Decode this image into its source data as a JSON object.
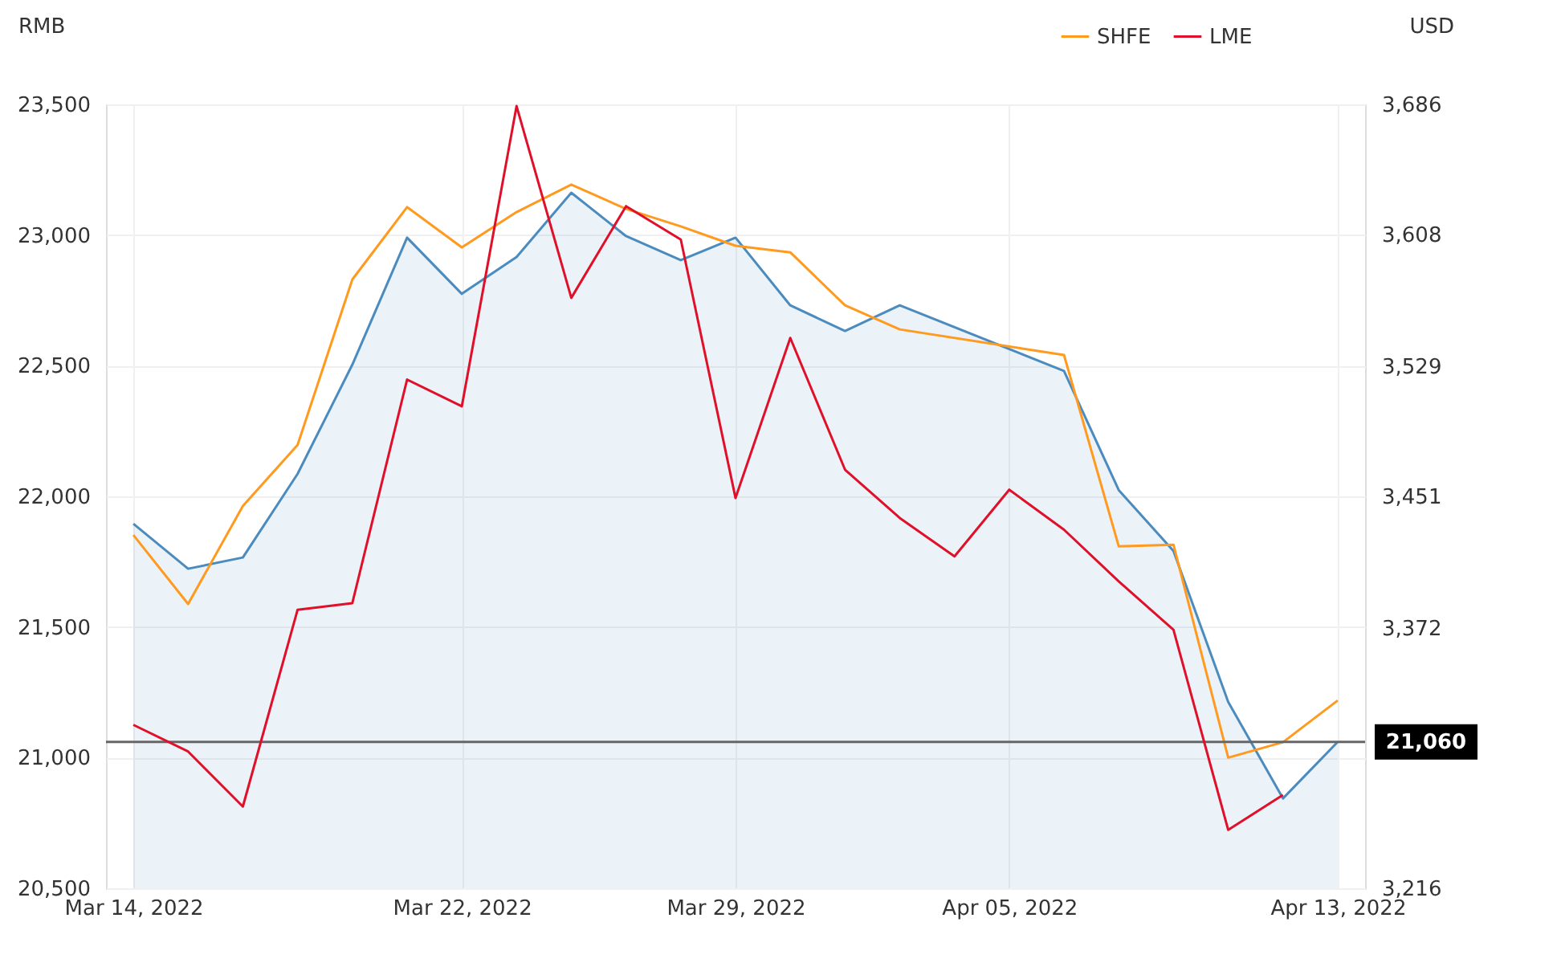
{
  "chart_data": {
    "type": "line",
    "categories": [
      "Mar 14, 2022",
      null,
      null,
      null,
      null,
      null,
      "Mar 22, 2022",
      null,
      null,
      null,
      null,
      "Mar 29, 2022",
      null,
      null,
      null,
      null,
      "Apr 05, 2022",
      null,
      null,
      null,
      null,
      null,
      "Apr 13, 2022"
    ],
    "ylabel": "RMB",
    "y2label": "USD",
    "ylim": [
      20500,
      23500
    ],
    "yticks": [
      {
        "value": 20500,
        "label": "20,500"
      },
      {
        "value": 21000,
        "label": "21,000"
      },
      {
        "value": 21500,
        "label": "21,500"
      },
      {
        "value": 22000,
        "label": "22,000"
      },
      {
        "value": 22500,
        "label": "22,500"
      },
      {
        "value": 23000,
        "label": "23,000"
      },
      {
        "value": 23500,
        "label": "23,500"
      }
    ],
    "y2lim": [
      3216,
      3686
    ],
    "y2ticks": [
      {
        "value": 3216,
        "label": "3,216"
      },
      {
        "value": 3372,
        "label": "3,372"
      },
      {
        "value": 3451,
        "label": "3,451"
      },
      {
        "value": 3529,
        "label": "3,529"
      },
      {
        "value": 3608,
        "label": "3,608"
      },
      {
        "value": 3686,
        "label": "3,686"
      }
    ],
    "series": [
      {
        "type": "area",
        "color": "#4b8bbe",
        "values": [
          21895,
          21723,
          21766,
          22086,
          22504,
          22990,
          22775,
          22916,
          23162,
          22996,
          22904,
          22990,
          22731,
          22633,
          22731,
          null,
          null,
          22480,
          22024,
          21791,
          21213,
          20844,
          21060
        ]
      },
      {
        "name": "SHFE",
        "color": "#ff9a1f",
        "values": [
          21852,
          21588,
          21963,
          22197,
          22830,
          23107,
          22953,
          23088,
          23193,
          23100,
          23033,
          22959,
          22934,
          22731,
          22639,
          null,
          null,
          22541,
          21809,
          21815,
          21000,
          21059,
          21219
        ]
      },
      {
        "name": "LME",
        "color": "#e0102a",
        "axis": "y2",
        "values": [
          3314,
          3298,
          3265,
          3383,
          3387,
          3521,
          3505,
          3685,
          3570,
          3625,
          3605,
          3450,
          3546,
          3467,
          3438,
          3415,
          3455,
          3431,
          3400,
          3371,
          3251,
          3272,
          null
        ]
      }
    ],
    "ref_lines": [
      {
        "axis": "y",
        "value": 21060,
        "label": "21,060",
        "color": "#666666"
      }
    ],
    "grid": true,
    "legend": "top right",
    "marker": "none",
    "line_style": "solid"
  }
}
